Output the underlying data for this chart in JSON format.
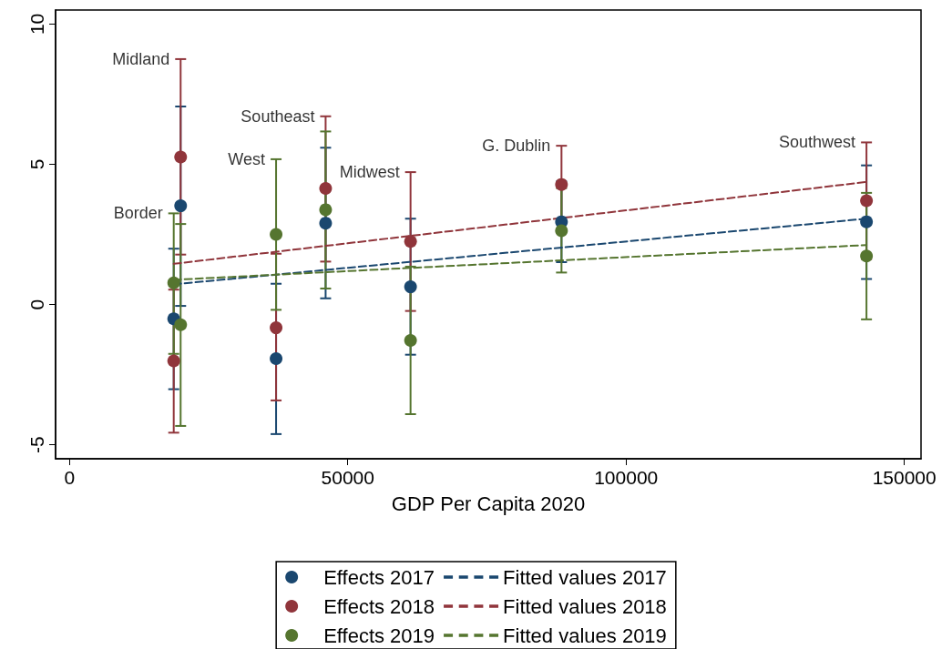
{
  "chart_data": {
    "type": "scatter",
    "xlabel": "GDP Per Capita 2020",
    "xlim": [
      -2500,
      153000
    ],
    "xticks": [
      0,
      50000,
      100000,
      150000
    ],
    "ylim": [
      -5.5,
      10.5
    ],
    "yticks": [
      -5,
      0,
      5,
      10
    ],
    "grid": false,
    "legend": "bottom",
    "marker": "circle",
    "series": [
      {
        "name": "Effects 2017",
        "color": "#1a476f",
        "x": [
          18730,
          19970,
          37120,
          46020,
          61280,
          88400,
          143200
        ],
        "values": [
          -0.51,
          3.52,
          -1.93,
          2.9,
          0.63,
          2.95,
          2.95
        ],
        "errors": [
          [
            -3.02,
            1.99
          ],
          [
            -0.05,
            7.06
          ],
          [
            -4.62,
            0.74
          ],
          [
            0.22,
            5.59
          ],
          [
            -1.79,
            3.06
          ],
          [
            1.51,
            4.39
          ],
          [
            0.91,
            4.96
          ]
        ]
      },
      {
        "name": "Effects 2018",
        "color": "#90353b",
        "x": [
          18730,
          19970,
          37120,
          46020,
          61280,
          88400,
          143200
        ],
        "values": [
          -2.01,
          5.26,
          -0.83,
          4.14,
          2.25,
          4.28,
          3.7
        ],
        "errors": [
          [
            -4.57,
            0.53
          ],
          [
            1.78,
            8.75
          ],
          [
            -3.42,
            1.81
          ],
          [
            1.53,
            6.71
          ],
          [
            -0.23,
            4.72
          ],
          [
            2.9,
            5.66
          ],
          [
            1.62,
            5.78
          ]
        ]
      },
      {
        "name": "Effects 2019",
        "color": "#55752f",
        "x": [
          18730,
          19970,
          37120,
          46020,
          61280,
          88400,
          143200
        ],
        "values": [
          0.77,
          -0.72,
          2.5,
          3.38,
          -1.28,
          2.63,
          1.73
        ],
        "errors": [
          [
            -1.76,
            3.25
          ],
          [
            -4.33,
            2.87
          ],
          [
            -0.19,
            5.18
          ],
          [
            0.57,
            6.17
          ],
          [
            -3.91,
            1.35
          ],
          [
            1.14,
            4.15
          ],
          [
            -0.53,
            3.98
          ]
        ]
      },
      {
        "name": "Fitted values 2017",
        "type": "line",
        "line_style": "dashed",
        "marker": "none",
        "color": "#1a476f",
        "x": [
          18730,
          143200
        ],
        "values": [
          0.72,
          3.06
        ]
      },
      {
        "name": "Fitted values 2018",
        "type": "line",
        "line_style": "dashed",
        "marker": "none",
        "color": "#90353b",
        "x": [
          18730,
          143200
        ],
        "values": [
          1.45,
          4.37
        ]
      },
      {
        "name": "Fitted values 2019",
        "type": "line",
        "line_style": "dashed",
        "marker": "none",
        "color": "#55752f",
        "x": [
          18730,
          143200
        ],
        "values": [
          0.88,
          2.12
        ]
      }
    ],
    "annotations": [
      "Border",
      "Midland",
      "West",
      "Southeast",
      "Midwest",
      "G. Dublin",
      "Southwest"
    ]
  }
}
